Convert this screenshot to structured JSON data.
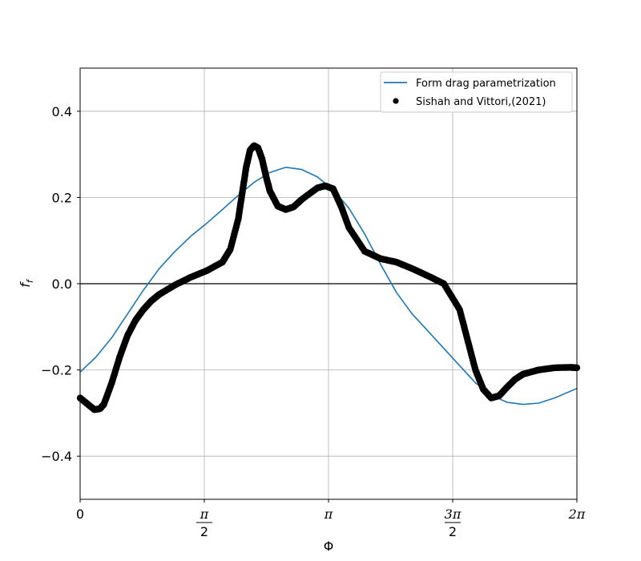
{
  "chart_data": {
    "type": "line",
    "xlabel": "Φ",
    "ylabel_main": "f",
    "ylabel_sub": "f",
    "xlim": [
      0,
      6.2832
    ],
    "ylim": [
      -0.5,
      0.5
    ],
    "grid": true,
    "legend_placement": "top-right",
    "x_ticks": [
      {
        "value": 0,
        "label": "0"
      },
      {
        "value": 1.5708,
        "label": "π/2",
        "num": "π",
        "den": "2"
      },
      {
        "value": 3.1416,
        "label": "π"
      },
      {
        "value": 4.7124,
        "label": "3π/2",
        "num": "3π",
        "den": "2"
      },
      {
        "value": 6.2832,
        "label": "2π"
      }
    ],
    "y_ticks": [
      {
        "value": 0.4,
        "label": "0.4"
      },
      {
        "value": 0.2,
        "label": "0.2"
      },
      {
        "value": 0.0,
        "label": "0.0"
      },
      {
        "value": -0.2,
        "label": "−0.2"
      },
      {
        "value": -0.4,
        "label": "−0.4"
      }
    ],
    "zero_line": true,
    "series": [
      {
        "name": "Form drag parametrization",
        "kind": "line",
        "color": "#1f77b4",
        "x": [
          0,
          0.2,
          0.4,
          0.6,
          0.8,
          1.0,
          1.2,
          1.4,
          1.6,
          1.8,
          2.0,
          2.2,
          2.4,
          2.6,
          2.8,
          3.0,
          3.2,
          3.4,
          3.6,
          3.8,
          4.0,
          4.2,
          4.4,
          4.6,
          4.8,
          5.0,
          5.2,
          5.4,
          5.6,
          5.8,
          6.0,
          6.2832
        ],
        "y": [
          -0.205,
          -0.17,
          -0.125,
          -0.07,
          -0.015,
          0.035,
          0.075,
          0.11,
          0.14,
          0.172,
          0.205,
          0.235,
          0.258,
          0.27,
          0.265,
          0.248,
          0.218,
          0.175,
          0.115,
          0.045,
          -0.02,
          -0.07,
          -0.11,
          -0.15,
          -0.19,
          -0.23,
          -0.258,
          -0.275,
          -0.28,
          -0.277,
          -0.265,
          -0.243
        ]
      },
      {
        "name": "Sishah and Vittori,(2021)",
        "kind": "scatter",
        "color": "#000000",
        "x": [
          0,
          0.1,
          0.18,
          0.25,
          0.3,
          0.4,
          0.5,
          0.6,
          0.7,
          0.8,
          0.9,
          1.0,
          1.2,
          1.4,
          1.6,
          1.8,
          1.9,
          2.0,
          2.05,
          2.1,
          2.15,
          2.2,
          2.25,
          2.3,
          2.35,
          2.4,
          2.5,
          2.6,
          2.7,
          2.8,
          3.0,
          3.1,
          3.2,
          3.3,
          3.4,
          3.6,
          3.8,
          4.0,
          4.2,
          4.4,
          4.6,
          4.8,
          4.9,
          5.0,
          5.1,
          5.2,
          5.3,
          5.4,
          5.5,
          5.6,
          5.8,
          6.0,
          6.2,
          6.2832
        ],
        "y": [
          -0.265,
          -0.28,
          -0.292,
          -0.29,
          -0.28,
          -0.23,
          -0.17,
          -0.12,
          -0.085,
          -0.06,
          -0.04,
          -0.025,
          -0.003,
          0.015,
          0.03,
          0.05,
          0.08,
          0.15,
          0.21,
          0.27,
          0.31,
          0.32,
          0.315,
          0.29,
          0.25,
          0.215,
          0.18,
          0.172,
          0.178,
          0.195,
          0.222,
          0.227,
          0.22,
          0.18,
          0.13,
          0.075,
          0.058,
          0.05,
          0.035,
          0.018,
          0.0,
          -0.06,
          -0.13,
          -0.2,
          -0.245,
          -0.265,
          -0.26,
          -0.24,
          -0.222,
          -0.21,
          -0.2,
          -0.195,
          -0.194,
          -0.195
        ]
      }
    ]
  }
}
